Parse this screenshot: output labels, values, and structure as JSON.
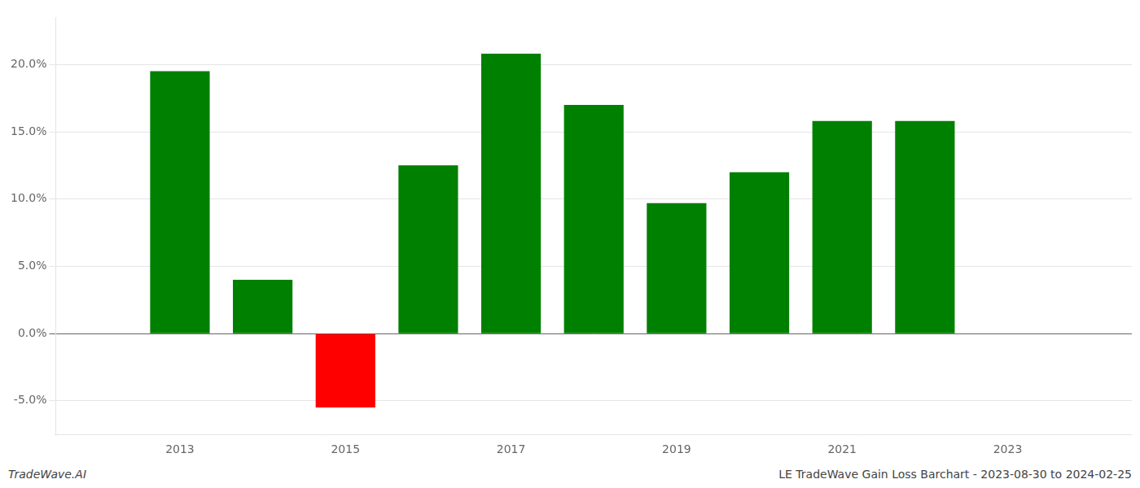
{
  "chart_data": {
    "type": "bar",
    "x": [
      2013,
      2014,
      2015,
      2016,
      2017,
      2018,
      2019,
      2020,
      2021,
      2022
    ],
    "values": [
      0.195,
      0.04,
      -0.055,
      0.125,
      0.208,
      0.17,
      0.097,
      0.12,
      0.158,
      0.158
    ],
    "colors": [
      "#008000",
      "#008000",
      "#ff0000",
      "#008000",
      "#008000",
      "#008000",
      "#008000",
      "#008000",
      "#008000",
      "#008000"
    ],
    "xlim": [
      2011.5,
      2024.5
    ],
    "xticks": [
      2013,
      2015,
      2017,
      2019,
      2021,
      2023
    ],
    "ylim": [
      -0.075,
      0.235
    ],
    "yticks": [
      {
        "value": -0.05,
        "label": "-5.0%"
      },
      {
        "value": 0.0,
        "label": "0.0%"
      },
      {
        "value": 0.05,
        "label": "5.0%"
      },
      {
        "value": 0.1,
        "label": "10.0%"
      },
      {
        "value": 0.15,
        "label": "15.0%"
      },
      {
        "value": 0.2,
        "label": "20.0%"
      }
    ],
    "grid": "y",
    "annotations": [
      "TradeWave.AI",
      "LE TradeWave Gain Loss Barchart - 2023-08-30 to 2024-02-25"
    ]
  }
}
